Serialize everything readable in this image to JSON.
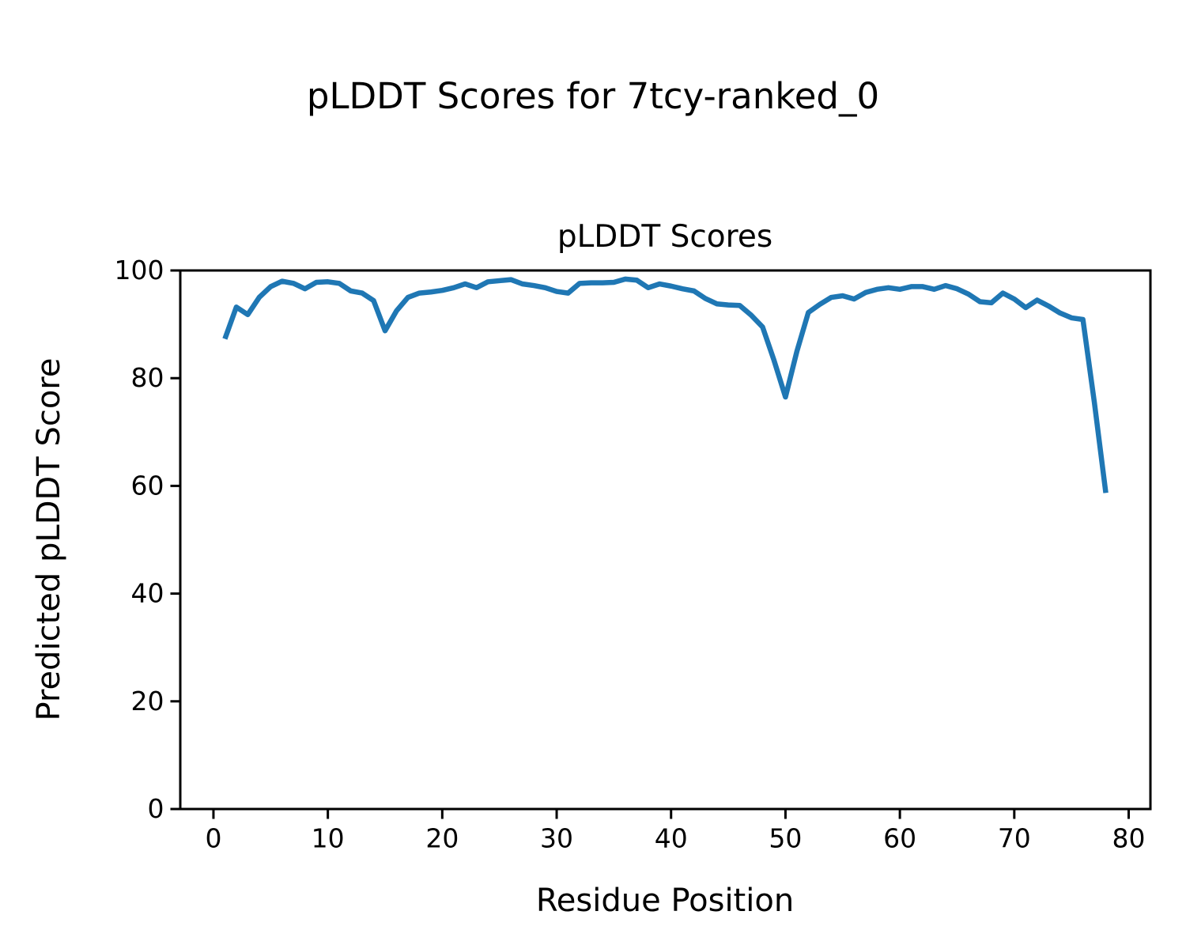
{
  "window": {
    "background": "#ffffff",
    "text_color": "#000000"
  },
  "chart_data": {
    "type": "line",
    "suptitle": "pLDDT Scores for 7tcy-ranked_0",
    "title": "pLDDT Scores",
    "xlabel": "Residue Position",
    "ylabel": "Predicted pLDDT Score",
    "xlim": [
      -2.9,
      81.9
    ],
    "ylim": [
      0,
      100
    ],
    "xticks": [
      0,
      10,
      20,
      30,
      40,
      50,
      60,
      70,
      80
    ],
    "yticks": [
      0,
      20,
      40,
      60,
      80,
      100
    ],
    "grid": false,
    "legend_position": "none",
    "line_color": "#1f77b4",
    "x": [
      1,
      2,
      3,
      4,
      5,
      6,
      7,
      8,
      9,
      10,
      11,
      12,
      13,
      14,
      15,
      16,
      17,
      18,
      19,
      20,
      21,
      22,
      23,
      24,
      25,
      26,
      27,
      28,
      29,
      30,
      31,
      32,
      33,
      34,
      35,
      36,
      37,
      38,
      39,
      40,
      41,
      42,
      43,
      44,
      45,
      46,
      47,
      48,
      49,
      50,
      51,
      52,
      53,
      54,
      55,
      56,
      57,
      58,
      59,
      60,
      61,
      62,
      63,
      64,
      65,
      66,
      67,
      68,
      69,
      70,
      71,
      72,
      73,
      74,
      75,
      76,
      77,
      78
    ],
    "series": [
      {
        "name": "pLDDT",
        "color": "#1f77b4",
        "values": [
          87.3,
          93.2,
          91.8,
          95.0,
          97.0,
          98.0,
          97.6,
          96.6,
          97.8,
          97.9,
          97.6,
          96.2,
          95.8,
          94.4,
          88.8,
          92.5,
          95.0,
          95.8,
          96.0,
          96.3,
          96.8,
          97.5,
          96.8,
          97.9,
          98.1,
          98.3,
          97.5,
          97.2,
          96.8,
          96.1,
          95.8,
          97.6,
          97.7,
          97.7,
          97.8,
          98.4,
          98.2,
          96.8,
          97.5,
          97.1,
          96.6,
          96.2,
          94.8,
          93.8,
          93.6,
          93.5,
          91.7,
          89.5,
          83.3,
          76.5,
          85.0,
          92.2,
          93.7,
          95.0,
          95.3,
          94.7,
          95.9,
          96.5,
          96.8,
          96.5,
          97.0,
          97.0,
          96.5,
          97.2,
          96.6,
          95.6,
          94.2,
          94.0,
          95.8,
          94.7,
          93.1,
          94.5,
          93.4,
          92.1,
          91.2,
          90.9,
          75.5,
          58.7
        ]
      }
    ]
  }
}
